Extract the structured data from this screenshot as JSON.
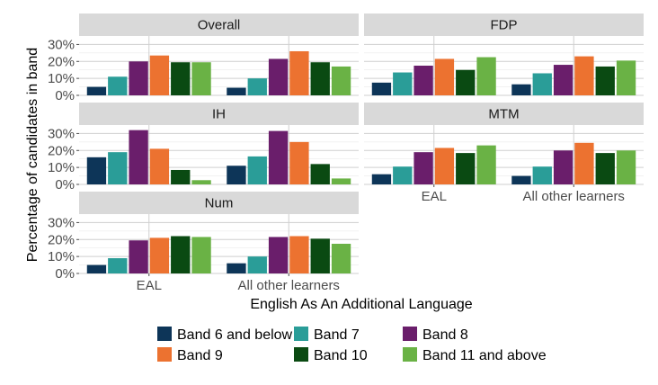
{
  "chart_data": {
    "type": "bar",
    "layout": "faceted",
    "xlabel": "English As An Additional Language",
    "ylabel": "Percentage of candidates in band",
    "categories": [
      "EAL",
      "All other learners"
    ],
    "y_ticks": [
      "0%",
      "10%",
      "20%",
      "30%"
    ],
    "ylim": [
      0,
      35
    ],
    "grid": true,
    "legend_position": "bottom",
    "series_names": [
      "Band 6 and below",
      "Band 7",
      "Band 8",
      "Band 9",
      "Band 10",
      "Band 11 and above"
    ],
    "colors": [
      "#0d3558",
      "#2a9d98",
      "#6a1e6b",
      "#ec7230",
      "#0a4a12",
      "#6ab245"
    ],
    "facets": [
      {
        "name": "Overall",
        "values": [
          [
            5,
            11,
            20,
            23.5,
            19.5,
            19.5
          ],
          [
            4.5,
            10,
            21.5,
            26,
            19.5,
            17
          ]
        ]
      },
      {
        "name": "FDP",
        "values": [
          [
            7.5,
            13.5,
            17.5,
            21.5,
            15,
            22.5
          ],
          [
            6.5,
            13,
            18,
            23,
            17,
            20.5
          ]
        ]
      },
      {
        "name": "IH",
        "values": [
          [
            16,
            19,
            32,
            21,
            8.5,
            2.5
          ],
          [
            11,
            16.5,
            31.5,
            25,
            12,
            3.5
          ]
        ]
      },
      {
        "name": "MTM",
        "values": [
          [
            6,
            10.5,
            19,
            21.5,
            18.5,
            23
          ],
          [
            5,
            10.5,
            20,
            24.5,
            18.5,
            20
          ]
        ]
      },
      {
        "name": "Num",
        "values": [
          [
            5,
            9,
            19.5,
            21,
            22,
            21.5
          ],
          [
            6,
            10,
            21.5,
            22,
            20.5,
            17.5
          ]
        ]
      }
    ]
  }
}
